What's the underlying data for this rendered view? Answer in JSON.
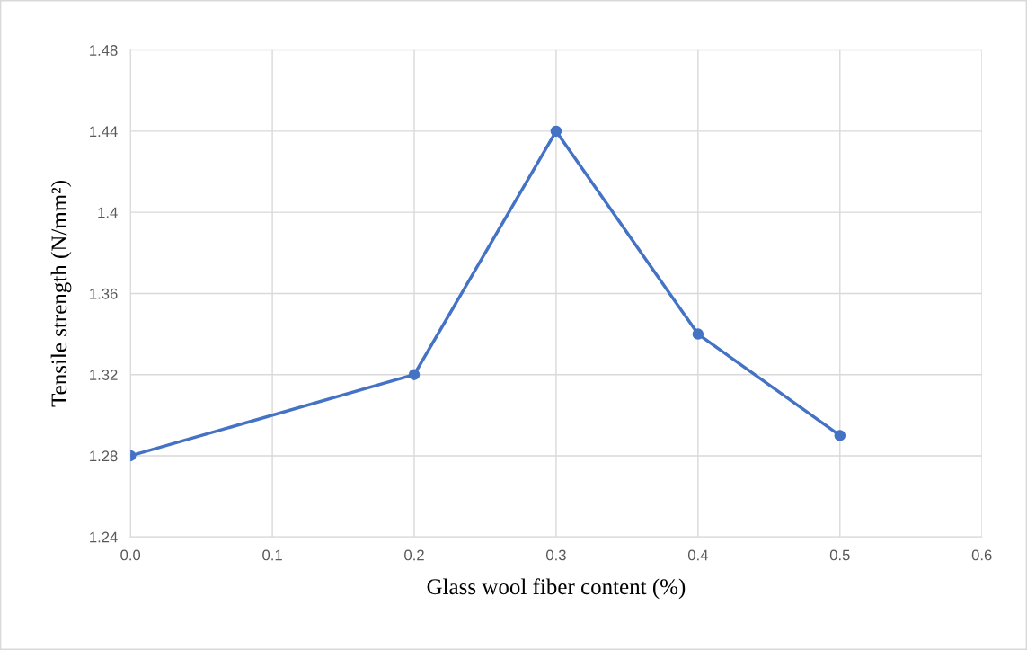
{
  "chart_data": {
    "type": "line",
    "xlabel": "Glass wool fiber content (%)",
    "ylabel": "Tensile strength (N/mm²)",
    "x": [
      0.0,
      0.2,
      0.3,
      0.4,
      0.5
    ],
    "series": [
      {
        "color": "#4472c4",
        "values": [
          1.28,
          1.32,
          1.44,
          1.34,
          1.29
        ]
      }
    ],
    "xlim": [
      0.0,
      0.6
    ],
    "xticks": [
      {
        "value": 0.0,
        "label": "0.0"
      },
      0.1,
      0.2,
      0.3,
      0.4,
      0.5,
      0.6
    ],
    "ylim": [
      1.24,
      1.48
    ],
    "yticks": [
      1.24,
      1.28,
      1.32,
      1.36,
      1.4,
      1.44,
      1.48
    ],
    "grid": true,
    "marker": "circle",
    "line_style": "solid",
    "legend": false
  }
}
